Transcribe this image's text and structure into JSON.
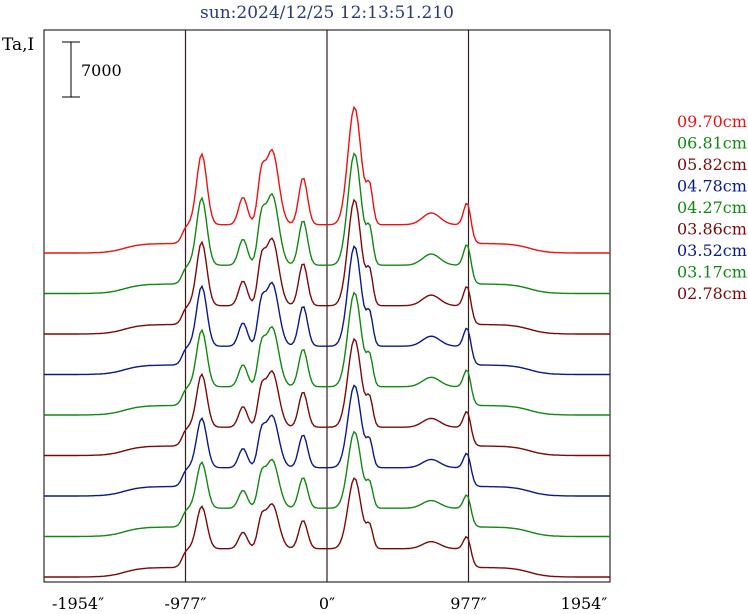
{
  "chart_data": {
    "type": "line",
    "title": "sun:2024/12/25 12:13:51.210",
    "ylabel": "Ta,I",
    "scale_bar_label": "7000",
    "x_ticks": [
      "-1954″",
      "-977″",
      "0″",
      "977″",
      "1954″"
    ],
    "x_tick_values": [
      -1954,
      -977,
      0,
      977,
      1954
    ],
    "xlim": [
      -1954,
      1954
    ],
    "vertical_lines": [
      -977,
      0,
      977
    ],
    "stack_offset": 7000,
    "series": [
      {
        "name": "09.70cm",
        "color": "#ee1111",
        "amp": 1.0,
        "legend_label": "09.70cm"
      },
      {
        "name": "06.81cm",
        "color": "#118811",
        "amp": 0.95,
        "legend_label": "06.81cm"
      },
      {
        "name": "05.82cm",
        "color": "#7a0a0a",
        "amp": 0.9,
        "legend_label": "05.82cm"
      },
      {
        "name": "04.78cm",
        "color": "#0a1a8a",
        "amp": 0.85,
        "legend_label": "04.78cm"
      },
      {
        "name": "04.27cm",
        "color": "#118811",
        "amp": 0.8,
        "legend_label": "04.27cm"
      },
      {
        "name": "03.86cm",
        "color": "#7a0a0a",
        "amp": 0.75,
        "legend_label": "03.86cm"
      },
      {
        "name": "03.52cm",
        "color": "#0a1a8a",
        "amp": 0.7,
        "legend_label": "03.52cm"
      },
      {
        "name": "03.17cm",
        "color": "#118811",
        "amp": 0.65,
        "legend_label": "03.17cm"
      },
      {
        "name": "02.78cm",
        "color": "#7a0a0a",
        "amp": 0.6,
        "legend_label": "02.78cm"
      }
    ]
  }
}
